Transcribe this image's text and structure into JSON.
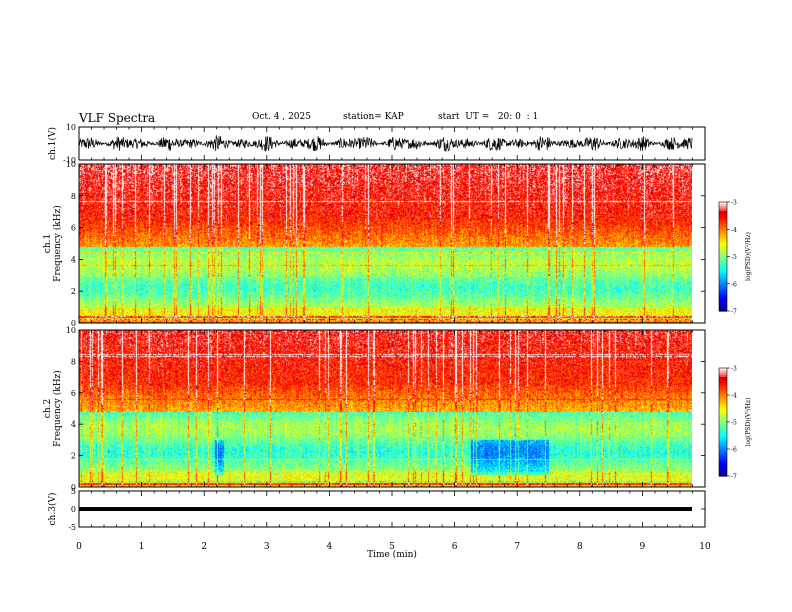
{
  "header": {
    "title": "VLF Spectra",
    "date": "Oct. 4 , 2025",
    "station": "station= KAP",
    "start_ut": "start  UT =   20: 0  : 1"
  },
  "chart_data": [
    {
      "type": "line",
      "name": "ch1-waveform",
      "ylabel": "ch.1(V)",
      "ylim": [
        -10,
        10
      ],
      "ytick_labels": [
        "10",
        "-10"
      ],
      "xlim": [
        0,
        10
      ],
      "note": "dense noisy waveform oscillating approximately between -5 and 5 V over 0 to 9.8 min"
    },
    {
      "type": "heatmap",
      "name": "ch1-spectrogram",
      "ylabel": "ch.1\nFrequency  (kHz)",
      "ylim": [
        0,
        10
      ],
      "ytick_labels": [
        "0",
        "2",
        "4",
        "6",
        "8",
        "10"
      ],
      "xlim": [
        0,
        9.8
      ],
      "colorbar": {
        "label": "log(PSD)(V²/Hz)",
        "range": [
          -7,
          -3
        ],
        "tick_labels": [
          "-3",
          "-4",
          "-5",
          "-6",
          "-7"
        ]
      }
    },
    {
      "type": "heatmap",
      "name": "ch2-spectrogram",
      "ylabel": "ch.2\nFrequency  (kHz)",
      "ylim": [
        0,
        10
      ],
      "ytick_labels": [
        "0",
        "2",
        "4",
        "6",
        "8",
        "10"
      ],
      "xlim": [
        0,
        9.8
      ],
      "colorbar": {
        "label": "log(PSD)(V²/Hz)",
        "range": [
          -7,
          -3
        ],
        "tick_labels": [
          "-3",
          "-4",
          "-5",
          "-6",
          "-7"
        ]
      }
    },
    {
      "type": "line",
      "name": "ch3-waveform",
      "ylabel": "ch.3(V)",
      "ylim": [
        -5,
        5
      ],
      "ytick_labels": [
        "5",
        "0",
        "-5"
      ],
      "xlim": [
        0,
        10
      ],
      "note": "near-constant thick band close to 0 V"
    }
  ],
  "x_axis": {
    "label": "Time  (min)",
    "tick_labels": [
      "0",
      "1",
      "2",
      "3",
      "4",
      "5",
      "6",
      "7",
      "8",
      "9",
      "10"
    ]
  }
}
